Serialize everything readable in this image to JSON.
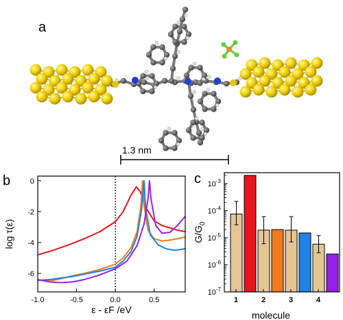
{
  "panels": {
    "a": {
      "label": "a",
      "scale_bar": {
        "text": "1.3 nm"
      }
    },
    "b": {
      "label": "b",
      "chart_data": {
        "type": "line",
        "xlabel": "ε - εF /eV",
        "ylabel": "log τ(ε)",
        "xlim": [
          -1.0,
          0.9
        ],
        "ylim": [
          -7.2,
          0.3
        ],
        "x_ticks": [
          -1.0,
          -0.5,
          0.0,
          0.5
        ],
        "x_tick_labels": [
          "-1.0",
          "-0.5",
          "0.0",
          "0.5"
        ],
        "y_ticks": [
          0,
          -2,
          -4,
          -6
        ],
        "y_tick_labels": [
          "0",
          "-2",
          "-4",
          "-6"
        ],
        "fermi_line_x": 0.0,
        "series": [
          {
            "color": "#e8141e",
            "points": [
              [
                -1.0,
                -4.8
              ],
              [
                -0.8,
                -4.5
              ],
              [
                -0.6,
                -4.15
              ],
              [
                -0.4,
                -3.75
              ],
              [
                -0.2,
                -3.3
              ],
              [
                0.0,
                -2.65
              ],
              [
                0.1,
                -2.0
              ],
              [
                0.2,
                -0.95
              ],
              [
                0.27,
                -0.4
              ],
              [
                0.32,
                -0.7
              ],
              [
                0.4,
                -1.8
              ],
              [
                0.5,
                -2.6
              ],
              [
                0.6,
                -2.9
              ],
              [
                0.7,
                -3.05
              ],
              [
                0.8,
                -3.2
              ],
              [
                0.9,
                -3.3
              ]
            ]
          },
          {
            "color": "#f07a1e",
            "points": [
              [
                -1.0,
                -6.45
              ],
              [
                -0.9,
                -6.45
              ],
              [
                -0.8,
                -6.45
              ],
              [
                -0.7,
                -6.35
              ],
              [
                -0.55,
                -6.15
              ],
              [
                -0.4,
                -6.0
              ],
              [
                -0.2,
                -5.75
              ],
              [
                0.0,
                -5.4
              ],
              [
                0.1,
                -5.0
              ],
              [
                0.2,
                -4.35
              ],
              [
                0.28,
                -3.3
              ],
              [
                0.33,
                -1.6
              ],
              [
                0.35,
                0.0
              ],
              [
                0.37,
                -1.6
              ],
              [
                0.42,
                -3.2
              ],
              [
                0.5,
                -3.75
              ],
              [
                0.6,
                -3.9
              ],
              [
                0.7,
                -3.85
              ],
              [
                0.8,
                -3.75
              ],
              [
                0.9,
                -3.65
              ]
            ]
          },
          {
            "color": "#1e82e6",
            "points": [
              [
                -1.0,
                -6.45
              ],
              [
                -0.85,
                -6.4
              ],
              [
                -0.7,
                -6.3
              ],
              [
                -0.55,
                -6.2
              ],
              [
                -0.4,
                -6.05
              ],
              [
                -0.2,
                -5.85
              ],
              [
                0.0,
                -5.6
              ],
              [
                0.1,
                -5.2
              ],
              [
                0.2,
                -4.6
              ],
              [
                0.28,
                -3.6
              ],
              [
                0.34,
                -1.8
              ],
              [
                0.37,
                0.0
              ],
              [
                0.39,
                -1.8
              ],
              [
                0.45,
                -3.5
              ],
              [
                0.55,
                -4.15
              ],
              [
                0.65,
                -4.4
              ],
              [
                0.75,
                -4.5
              ],
              [
                0.85,
                -4.45
              ],
              [
                0.9,
                -4.4
              ]
            ]
          },
          {
            "color": "#9a1eea",
            "points": [
              [
                -1.0,
                -6.4
              ],
              [
                -0.85,
                -6.55
              ],
              [
                -0.7,
                -6.6
              ],
              [
                -0.55,
                -6.55
              ],
              [
                -0.4,
                -6.4
              ],
              [
                -0.2,
                -6.1
              ],
              [
                0.0,
                -5.7
              ],
              [
                0.15,
                -5.2
              ],
              [
                0.28,
                -4.2
              ],
              [
                0.37,
                -2.8
              ],
              [
                0.42,
                -1.2
              ],
              [
                0.44,
                0.0
              ],
              [
                0.46,
                -1.2
              ],
              [
                0.52,
                -2.9
              ],
              [
                0.6,
                -3.4
              ],
              [
                0.7,
                -3.35
              ],
              [
                0.8,
                -2.9
              ],
              [
                0.9,
                -2.3
              ]
            ]
          }
        ]
      }
    },
    "c": {
      "label": "c",
      "chart_data": {
        "type": "bar",
        "xlabel": "molecule",
        "ylabel": "G/G0",
        "yscale": "log",
        "ylim_exp": [
          -7,
          -2.6
        ],
        "y_tick_labels": [
          "10^-7",
          "10^-6",
          "10^-5",
          "10^-4",
          "10^-3"
        ],
        "x_tick_labels": [
          "1",
          "2",
          "3",
          "4"
        ],
        "bars": [
          {
            "group": "1",
            "kind": "experiment",
            "value": 7.5e-05,
            "err_hi": 0.00022,
            "err_lo": 3e-05,
            "color": "#e3c596"
          },
          {
            "group": "1",
            "kind": "theory",
            "value": 0.002,
            "color": "#e8141e"
          },
          {
            "group": "2",
            "kind": "experiment",
            "value": 1.9e-05,
            "err_hi": 6e-05,
            "err_lo": 6e-06,
            "color": "#e3c596"
          },
          {
            "group": "2",
            "kind": "theory",
            "value": 2e-05,
            "color": "#f07a1e"
          },
          {
            "group": "3",
            "kind": "experiment",
            "value": 1.9e-05,
            "err_hi": 6e-05,
            "err_lo": 7e-06,
            "color": "#e3c596"
          },
          {
            "group": "3",
            "kind": "theory",
            "value": 1.5e-05,
            "color": "#1e82e6"
          },
          {
            "group": "4",
            "kind": "experiment",
            "value": 5.8e-06,
            "err_hi": 1.2e-05,
            "err_lo": 2.8e-06,
            "color": "#e3c596"
          },
          {
            "group": "4",
            "kind": "theory",
            "value": 2.5e-06,
            "color": "#9a1eea"
          }
        ]
      }
    }
  }
}
